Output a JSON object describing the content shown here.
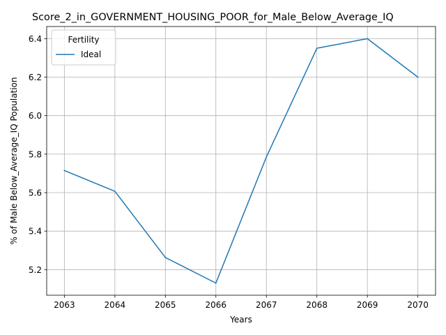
{
  "chart_data": {
    "type": "line",
    "title": "Score_2_in_GOVERNMENT_HOUSING_POOR_for_Male_Below_Average_IQ",
    "xlabel": "Years",
    "ylabel": "% of Male Below_Average_IQ Population",
    "x": [
      2063,
      2064,
      2065,
      2066,
      2067,
      2068,
      2069,
      2070
    ],
    "series": [
      {
        "name": "Ideal",
        "values": [
          5.715,
          5.607,
          5.263,
          5.13,
          5.785,
          6.35,
          6.4,
          6.2
        ],
        "color": "#1f77b4"
      }
    ],
    "xticks": [
      "2063",
      "2064",
      "2065",
      "2066",
      "2067",
      "2068",
      "2069",
      "2070"
    ],
    "yticks": [
      "5.2",
      "5.4",
      "5.6",
      "5.8",
      "6.0",
      "6.2",
      "6.4"
    ],
    "ylim": [
      5.067,
      6.463
    ],
    "xlim": [
      2062.65,
      2070.35
    ],
    "grid": true,
    "legend": {
      "title": "Fertility",
      "placement": "top-left"
    }
  }
}
